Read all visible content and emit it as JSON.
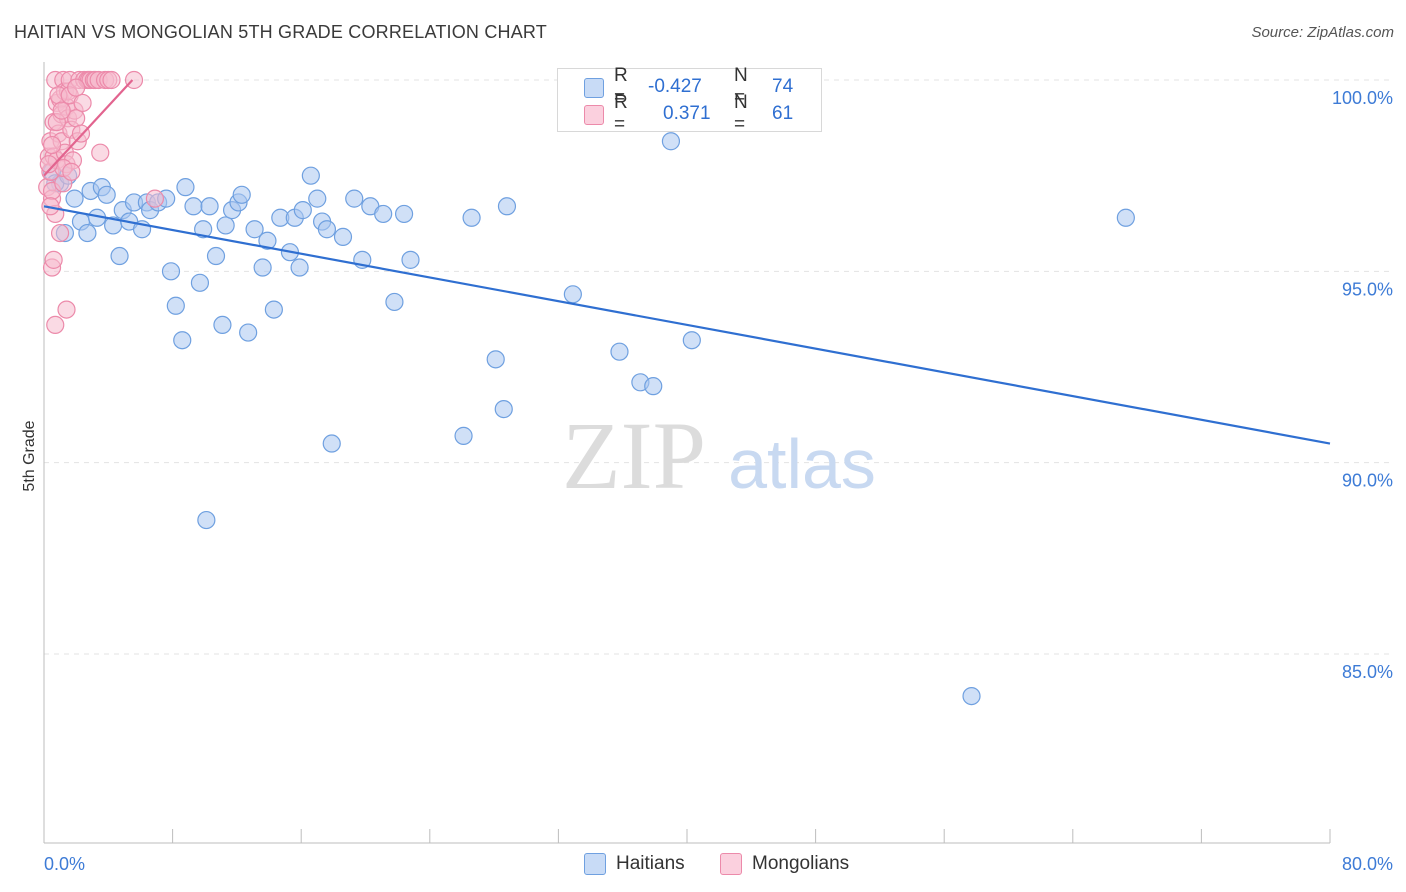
{
  "title": "HAITIAN VS MONGOLIAN 5TH GRADE CORRELATION CHART",
  "source": "Source: ZipAtlas.com",
  "watermark": {
    "zip": "ZIP",
    "atlas": "atlas"
  },
  "legend": {
    "rows": [
      {
        "r_label": "R =",
        "r_value": "-0.427",
        "n_label": "N =",
        "n_value": "74"
      },
      {
        "r_label": "R =",
        "r_value": "0.371",
        "n_label": "N =",
        "n_value": "61"
      }
    ]
  },
  "chart_data": {
    "type": "scatter",
    "title": "HAITIAN VS MONGOLIAN 5TH GRADE CORRELATION CHART",
    "xlabel": "",
    "ylabel": "5th Grade",
    "xlim": [
      0,
      80
    ],
    "ylim": [
      80.5,
      100.8
    ],
    "x_tick_labels": [
      "0.0%",
      "80.0%"
    ],
    "y_ticks": [
      100,
      95,
      90,
      85
    ],
    "y_tick_labels": [
      "100.0%",
      "95.0%",
      "90.0%",
      "85.0%"
    ],
    "grid": true,
    "legend_position": "bottom-center",
    "series": [
      {
        "name": "Haitians",
        "color": "#6fa0e0",
        "fill": "#a9c6f0",
        "r": -0.427,
        "n": 74,
        "trend": {
          "x": [
            0,
            80
          ],
          "y": [
            96.7,
            90.5
          ]
        },
        "points": [
          [
            0.5,
            97.6
          ],
          [
            1.0,
            97.3
          ],
          [
            1.3,
            96.0
          ],
          [
            1.9,
            96.9
          ],
          [
            2.3,
            96.3
          ],
          [
            2.7,
            96.0
          ],
          [
            2.9,
            97.1
          ],
          [
            3.3,
            96.4
          ],
          [
            3.6,
            97.2
          ],
          [
            3.9,
            97.0
          ],
          [
            4.3,
            96.2
          ],
          [
            4.7,
            95.4
          ],
          [
            4.9,
            96.6
          ],
          [
            5.3,
            96.3
          ],
          [
            5.6,
            96.8
          ],
          [
            6.1,
            96.1
          ],
          [
            6.4,
            96.8
          ],
          [
            6.6,
            96.6
          ],
          [
            7.1,
            96.8
          ],
          [
            7.6,
            96.9
          ],
          [
            7.9,
            95.0
          ],
          [
            8.2,
            94.1
          ],
          [
            8.6,
            93.2
          ],
          [
            8.8,
            97.2
          ],
          [
            9.3,
            96.7
          ],
          [
            9.7,
            94.7
          ],
          [
            10.1,
            88.5
          ],
          [
            10.3,
            96.7
          ],
          [
            10.7,
            95.4
          ],
          [
            11.1,
            93.6
          ],
          [
            11.3,
            96.2
          ],
          [
            11.7,
            96.6
          ],
          [
            12.1,
            96.8
          ],
          [
            12.3,
            97.0
          ],
          [
            12.7,
            93.4
          ],
          [
            13.1,
            96.1
          ],
          [
            13.6,
            95.1
          ],
          [
            13.9,
            95.8
          ],
          [
            14.3,
            94.0
          ],
          [
            14.7,
            96.4
          ],
          [
            15.3,
            95.5
          ],
          [
            15.6,
            96.4
          ],
          [
            15.9,
            95.1
          ],
          [
            16.1,
            96.6
          ],
          [
            16.6,
            97.5
          ],
          [
            17.0,
            96.9
          ],
          [
            17.3,
            96.3
          ],
          [
            17.6,
            96.1
          ],
          [
            17.9,
            90.5
          ],
          [
            18.6,
            95.9
          ],
          [
            19.3,
            96.9
          ],
          [
            19.8,
            95.3
          ],
          [
            20.3,
            96.7
          ],
          [
            21.1,
            96.5
          ],
          [
            21.8,
            94.2
          ],
          [
            22.4,
            96.5
          ],
          [
            22.8,
            95.3
          ],
          [
            26.1,
            90.7
          ],
          [
            26.6,
            96.4
          ],
          [
            28.1,
            92.7
          ],
          [
            28.6,
            91.4
          ],
          [
            28.8,
            96.7
          ],
          [
            32.5,
            100.0
          ],
          [
            32.9,
            94.4
          ],
          [
            35.8,
            92.9
          ],
          [
            37.1,
            92.1
          ],
          [
            37.9,
            92.0
          ],
          [
            39.0,
            98.4
          ],
          [
            40.3,
            93.2
          ],
          [
            57.7,
            83.9
          ],
          [
            67.3,
            96.4
          ],
          [
            0.7,
            97.3
          ],
          [
            1.5,
            97.5
          ],
          [
            9.9,
            96.1
          ]
        ]
      },
      {
        "name": "Mongolians",
        "color": "#ec8aaa",
        "fill": "#f6bccd",
        "r": 0.371,
        "n": 61,
        "trend": {
          "x": [
            0,
            5.5
          ],
          "y": [
            97.5,
            100.0
          ]
        },
        "points": [
          [
            0.2,
            97.2
          ],
          [
            0.3,
            98.0
          ],
          [
            0.4,
            98.4
          ],
          [
            0.4,
            97.6
          ],
          [
            0.5,
            96.9
          ],
          [
            0.5,
            97.1
          ],
          [
            0.6,
            98.0
          ],
          [
            0.6,
            98.9
          ],
          [
            0.7,
            96.5
          ],
          [
            0.7,
            100.0
          ],
          [
            0.8,
            99.4
          ],
          [
            0.8,
            97.9
          ],
          [
            0.9,
            98.6
          ],
          [
            1.0,
            99.5
          ],
          [
            1.0,
            96.0
          ],
          [
            1.1,
            98.4
          ],
          [
            1.1,
            99.1
          ],
          [
            1.2,
            97.3
          ],
          [
            1.2,
            100.0
          ],
          [
            1.3,
            99.7
          ],
          [
            1.3,
            98.1
          ],
          [
            1.4,
            99.3
          ],
          [
            1.4,
            97.8
          ],
          [
            1.5,
            99.7
          ],
          [
            1.5,
            99.0
          ],
          [
            1.6,
            100.0
          ],
          [
            1.7,
            98.7
          ],
          [
            1.8,
            97.9
          ],
          [
            1.9,
            99.2
          ],
          [
            2.0,
            99.0
          ],
          [
            2.1,
            98.4
          ],
          [
            2.2,
            100.0
          ],
          [
            2.3,
            98.6
          ],
          [
            2.5,
            100.0
          ],
          [
            2.7,
            100.0
          ],
          [
            2.8,
            100.0
          ],
          [
            2.9,
            100.0
          ],
          [
            3.1,
            100.0
          ],
          [
            3.2,
            100.0
          ],
          [
            3.4,
            100.0
          ],
          [
            3.5,
            98.1
          ],
          [
            3.8,
            100.0
          ],
          [
            4.0,
            100.0
          ],
          [
            4.2,
            100.0
          ],
          [
            5.6,
            100.0
          ],
          [
            0.5,
            95.1
          ],
          [
            0.6,
            95.3
          ],
          [
            0.7,
            93.6
          ],
          [
            1.4,
            94.0
          ],
          [
            6.9,
            96.9
          ],
          [
            0.9,
            99.6
          ],
          [
            1.2,
            97.7
          ],
          [
            0.3,
            97.8
          ],
          [
            1.6,
            99.6
          ],
          [
            0.5,
            98.3
          ],
          [
            2.0,
            99.8
          ],
          [
            0.8,
            98.9
          ],
          [
            1.1,
            99.2
          ],
          [
            0.4,
            96.7
          ],
          [
            1.7,
            97.6
          ],
          [
            2.4,
            99.4
          ]
        ]
      }
    ]
  }
}
